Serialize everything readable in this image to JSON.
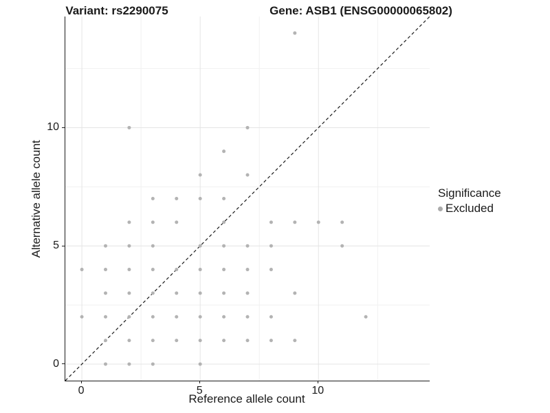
{
  "titles": {
    "left": "Variant: rs2290075",
    "right": "Gene: ASB1 (ENSG00000065802)"
  },
  "chart_data": {
    "type": "scatter",
    "title_left": "Variant: rs2290075",
    "title_right": "Gene: ASB1 (ENSG00000065802)",
    "xlabel": "Reference allele count",
    "ylabel": "Alternative allele count",
    "xlim": [
      -0.7,
      14.7
    ],
    "ylim": [
      -0.7,
      14.7
    ],
    "major_breaks": [
      0,
      5,
      10
    ],
    "minor_breaks": [
      2.5,
      7.5,
      12.5
    ],
    "tick_labels": [
      "0",
      "5",
      "10"
    ],
    "grid": "on",
    "grid_major_color": "#e4e4e4",
    "grid_minor_color": "#f1f1f1",
    "axis_color": "#1a1a1a",
    "identity_line": {
      "slope": 1,
      "intercept": 0,
      "style": "dashed",
      "color": "#1a1a1a"
    },
    "point_color": "#b3b3b3",
    "series": [
      {
        "name": "Excluded",
        "points": [
          [
            1,
            0
          ],
          [
            2,
            0
          ],
          [
            3,
            0
          ],
          [
            5,
            0
          ],
          [
            1,
            1
          ],
          [
            2,
            1
          ],
          [
            3,
            1
          ],
          [
            4,
            1
          ],
          [
            5,
            1
          ],
          [
            6,
            1
          ],
          [
            7,
            1
          ],
          [
            8,
            1
          ],
          [
            9,
            1
          ],
          [
            0,
            2
          ],
          [
            1,
            2
          ],
          [
            2,
            2
          ],
          [
            3,
            2
          ],
          [
            4,
            2
          ],
          [
            5,
            2
          ],
          [
            6,
            2
          ],
          [
            7,
            2
          ],
          [
            8,
            2
          ],
          [
            12,
            2
          ],
          [
            1,
            3
          ],
          [
            2,
            3
          ],
          [
            3,
            3
          ],
          [
            4,
            3
          ],
          [
            5,
            3
          ],
          [
            6,
            3
          ],
          [
            7,
            3
          ],
          [
            9,
            3
          ],
          [
            0,
            4
          ],
          [
            1,
            4
          ],
          [
            2,
            4
          ],
          [
            3,
            4
          ],
          [
            4,
            4
          ],
          [
            5,
            4
          ],
          [
            6,
            4
          ],
          [
            7,
            4
          ],
          [
            8,
            4
          ],
          [
            1,
            5
          ],
          [
            2,
            5
          ],
          [
            3,
            5
          ],
          [
            5,
            5
          ],
          [
            6,
            5
          ],
          [
            7,
            5
          ],
          [
            8,
            5
          ],
          [
            11,
            5
          ],
          [
            2,
            6
          ],
          [
            3,
            6
          ],
          [
            4,
            6
          ],
          [
            6,
            6
          ],
          [
            8,
            6
          ],
          [
            9,
            6
          ],
          [
            10,
            6
          ],
          [
            11,
            6
          ],
          [
            3,
            7
          ],
          [
            4,
            7
          ],
          [
            5,
            7
          ],
          [
            6,
            7
          ],
          [
            5,
            8
          ],
          [
            7,
            8
          ],
          [
            6,
            9
          ],
          [
            2,
            10
          ],
          [
            7,
            10
          ],
          [
            9,
            14
          ]
        ]
      }
    ],
    "legend": {
      "position": "right",
      "title": "Significance",
      "items": [
        {
          "label": "Excluded",
          "color": "#ababab"
        }
      ]
    }
  }
}
